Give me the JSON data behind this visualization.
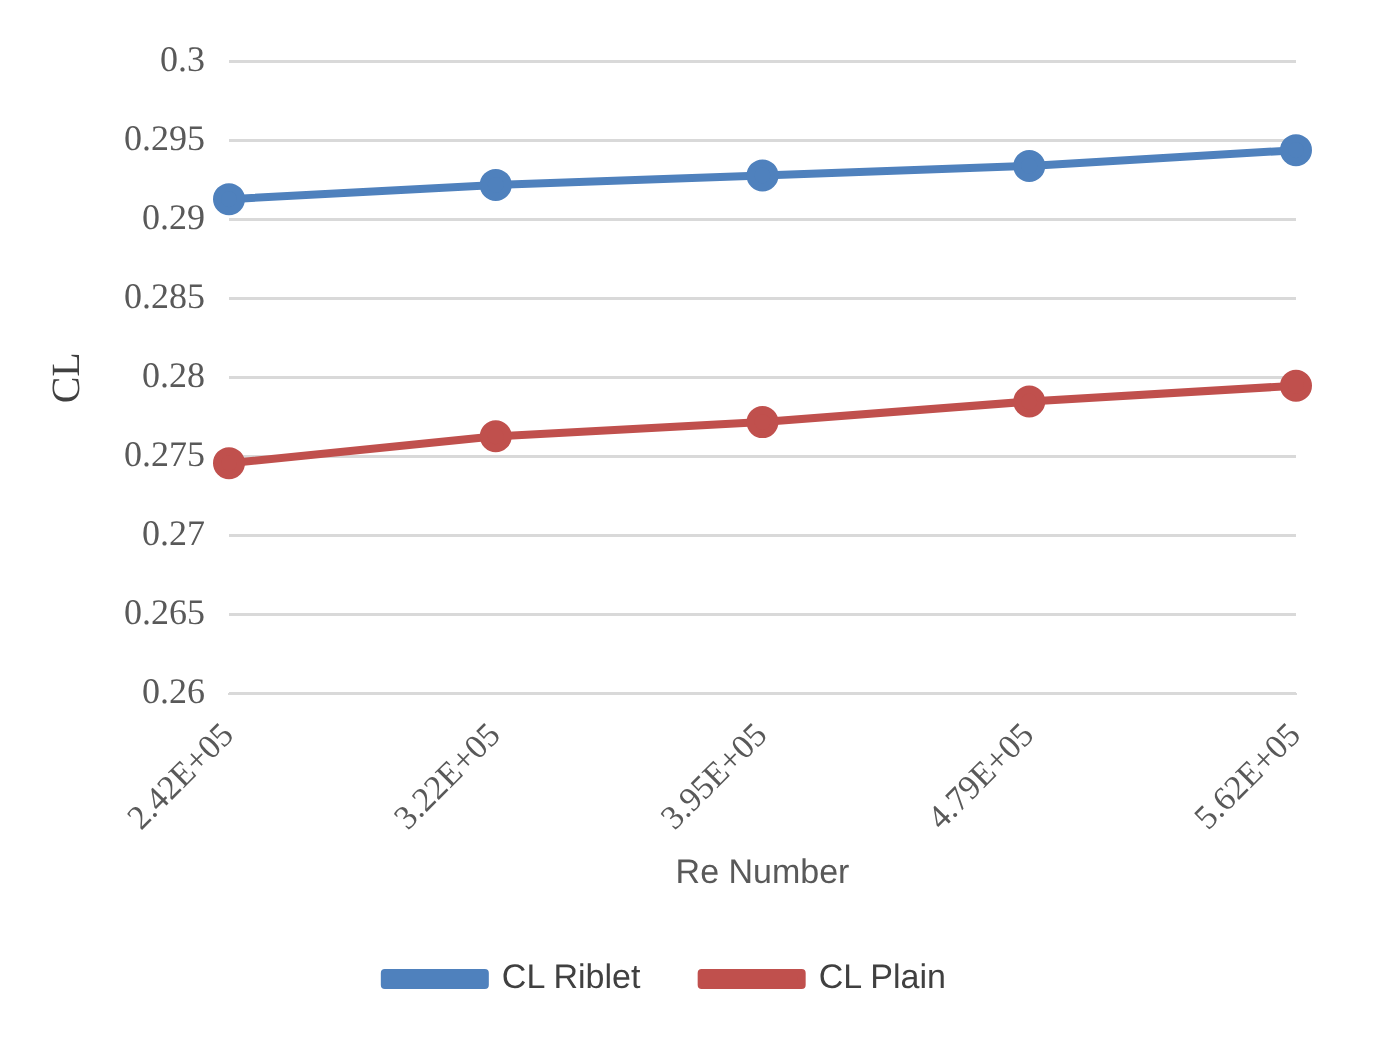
{
  "chart_data": {
    "type": "line",
    "xlabel": "Re Number",
    "ylabel": "CL",
    "categories": [
      "2.42E+05",
      "3.22E+05",
      "3.95E+05",
      "4.79E+05",
      "5.62E+05"
    ],
    "series": [
      {
        "name": "CL Riblet",
        "color": "#4f81bd",
        "values": [
          0.2913,
          0.2922,
          0.2928,
          0.2934,
          0.2944
        ]
      },
      {
        "name": "CL Plain",
        "color": "#c0504d",
        "values": [
          0.2746,
          0.2763,
          0.2772,
          0.2785,
          0.2795
        ]
      }
    ],
    "ylim": [
      0.26,
      0.3
    ],
    "yticks": [
      0.26,
      0.265,
      0.27,
      0.275,
      0.28,
      0.285,
      0.29,
      0.295,
      0.3
    ],
    "grid": "y",
    "legend": "bottom",
    "marker": "circle",
    "line_style": "solid"
  }
}
